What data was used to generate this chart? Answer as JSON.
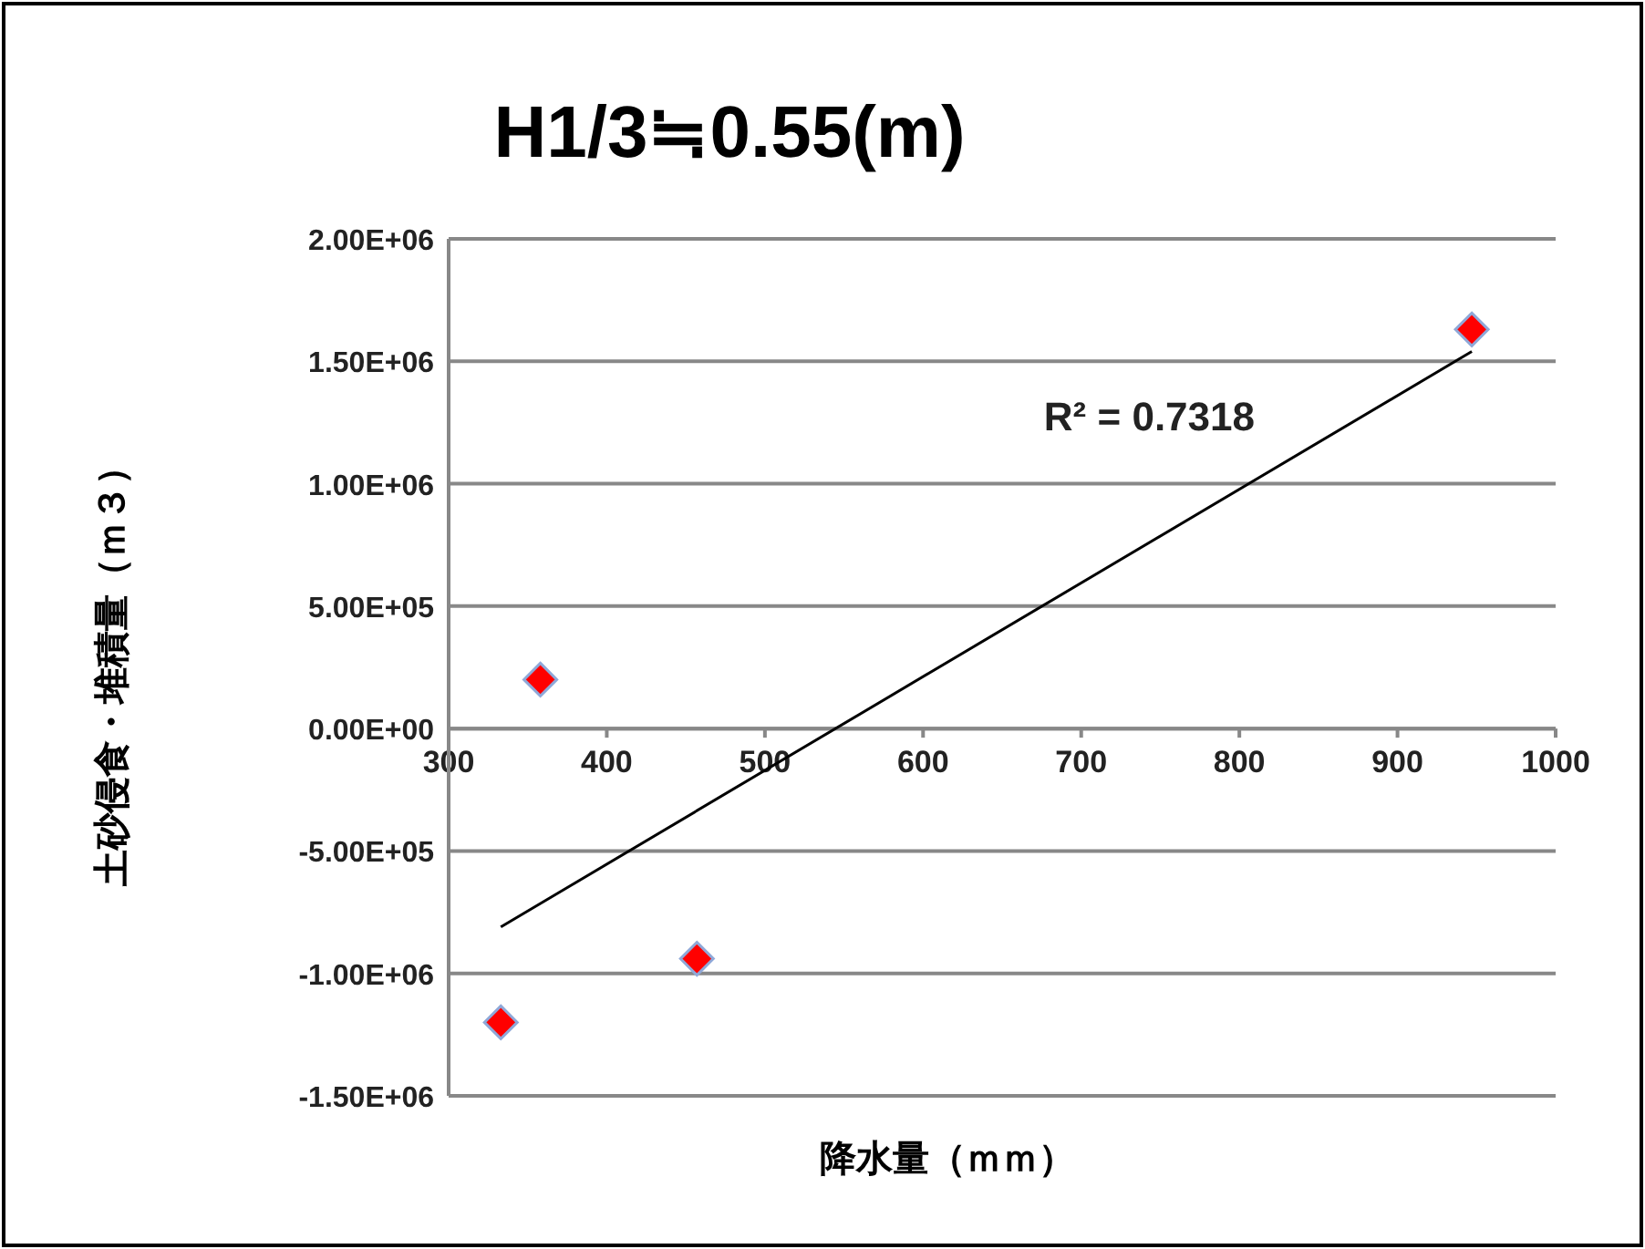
{
  "chart_data": {
    "type": "scatter",
    "title": "H1/3≒0.55(m)",
    "xlabel": "降水量（ｍｍ）",
    "ylabel": "土砂侵食・堆積量（ｍ３）",
    "series": [
      {
        "color": "#ff0000",
        "x": [
          333,
          358,
          457,
          947
        ],
        "values": [
          -1200000,
          200000,
          -940000,
          1630000
        ],
        "marker": "diamond"
      },
      {
        "type": "line",
        "color": "#000000",
        "x": [
          333,
          947
        ],
        "values": [
          -810000,
          1540000
        ],
        "marker": "none"
      }
    ],
    "annotations": [
      "R² = 0.7318"
    ],
    "xlim": [
      300,
      1000
    ],
    "xticks": [
      300,
      400,
      500,
      600,
      700,
      800,
      900,
      1000
    ],
    "ylim": [
      -1500000,
      2000000
    ],
    "yticks": [
      {
        "value": -1500000,
        "label": "-1.50E+06"
      },
      {
        "value": -1000000,
        "label": "-1.00E+06"
      },
      {
        "value": -500000,
        "label": "-5.00E+05"
      },
      {
        "value": 0,
        "label": "0.00E+00"
      },
      {
        "value": 500000,
        "label": "5.00E+05"
      },
      {
        "value": 1000000,
        "label": "1.00E+06"
      },
      {
        "value": 1500000,
        "label": "1.50E+06"
      },
      {
        "value": 2000000,
        "label": "2.00E+06"
      }
    ],
    "grid": "y"
  }
}
